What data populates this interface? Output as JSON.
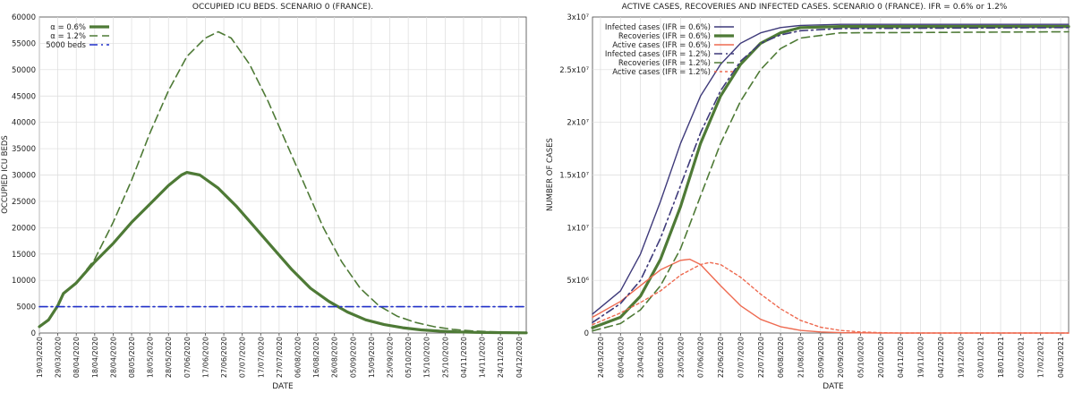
{
  "chart_data": [
    {
      "type": "line",
      "title": "OCCUPIED ICU BEDS. SCENARIO 0 (FRANCE).",
      "xlabel": "DATE",
      "ylabel": "OCCUPIED ICU BEDS",
      "ylim": [
        0,
        60000
      ],
      "yticks": [
        "0",
        "5000",
        "10000",
        "15000",
        "20000",
        "25000",
        "30000",
        "35000",
        "40000",
        "45000",
        "50000",
        "55000",
        "60000"
      ],
      "xlim": [
        "2020-03-19",
        "2020-12-08"
      ],
      "xtick_labels": [
        "19/03/2020",
        "29/03/2020",
        "08/04/2020",
        "18/04/2020",
        "28/04/2020",
        "08/05/2020",
        "18/05/2020",
        "28/05/2020",
        "07/06/2020",
        "17/06/2020",
        "27/06/2020",
        "07/07/2020",
        "17/07/2020",
        "27/07/2020",
        "06/08/2020",
        "16/08/2020",
        "26/08/2020",
        "05/09/2020",
        "15/09/2020",
        "25/09/2020",
        "05/10/2020",
        "15/10/2020",
        "25/10/2020",
        "04/11/2020",
        "14/11/2020",
        "24/11/2020",
        "04/12/2020"
      ],
      "grid": true,
      "legend": "top-left",
      "series": [
        {
          "name": "α = 0.6%",
          "color": "#4e7a36",
          "style": "solid-thick",
          "points": [
            [
              "2020-03-19",
              1200
            ],
            [
              "2020-03-24",
              2500
            ],
            [
              "2020-03-29",
              5200
            ],
            [
              "2020-04-01",
              7500
            ],
            [
              "2020-04-08",
              9500
            ],
            [
              "2020-04-18",
              13500
            ],
            [
              "2020-04-28",
              17000
            ],
            [
              "2020-05-08",
              21000
            ],
            [
              "2020-05-18",
              24500
            ],
            [
              "2020-05-28",
              28000
            ],
            [
              "2020-06-04",
              30000
            ],
            [
              "2020-06-07",
              30500
            ],
            [
              "2020-06-14",
              30000
            ],
            [
              "2020-06-24",
              27500
            ],
            [
              "2020-07-04",
              24000
            ],
            [
              "2020-07-14",
              20000
            ],
            [
              "2020-07-24",
              16000
            ],
            [
              "2020-08-03",
              12000
            ],
            [
              "2020-08-13",
              8500
            ],
            [
              "2020-08-23",
              6000
            ],
            [
              "2020-09-02",
              4000
            ],
            [
              "2020-09-12",
              2500
            ],
            [
              "2020-09-22",
              1600
            ],
            [
              "2020-10-02",
              1000
            ],
            [
              "2020-10-12",
              600
            ],
            [
              "2020-10-22",
              350
            ],
            [
              "2020-11-01",
              200
            ],
            [
              "2020-11-11",
              120
            ],
            [
              "2020-11-21",
              80
            ],
            [
              "2020-12-01",
              50
            ],
            [
              "2020-12-08",
              30
            ]
          ]
        },
        {
          "name": "α = 1.2%",
          "color": "#4e7a36",
          "style": "dashed",
          "points": [
            [
              "2020-03-19",
              1200
            ],
            [
              "2020-03-24",
              2500
            ],
            [
              "2020-03-29",
              5200
            ],
            [
              "2020-04-01",
              7500
            ],
            [
              "2020-04-08",
              9500
            ],
            [
              "2020-04-18",
              14000
            ],
            [
              "2020-04-28",
              21000
            ],
            [
              "2020-05-08",
              29000
            ],
            [
              "2020-05-18",
              38000
            ],
            [
              "2020-05-28",
              46000
            ],
            [
              "2020-06-07",
              52500
            ],
            [
              "2020-06-17",
              56000
            ],
            [
              "2020-06-24",
              57200
            ],
            [
              "2020-07-01",
              56000
            ],
            [
              "2020-07-11",
              51000
            ],
            [
              "2020-07-21",
              44000
            ],
            [
              "2020-07-31",
              36000
            ],
            [
              "2020-08-10",
              28000
            ],
            [
              "2020-08-20",
              20000
            ],
            [
              "2020-08-30",
              13500
            ],
            [
              "2020-09-09",
              8500
            ],
            [
              "2020-09-19",
              5200
            ],
            [
              "2020-09-29",
              3200
            ],
            [
              "2020-10-09",
              2000
            ],
            [
              "2020-10-19",
              1200
            ],
            [
              "2020-10-29",
              700
            ],
            [
              "2020-11-08",
              400
            ],
            [
              "2020-11-18",
              250
            ],
            [
              "2020-11-28",
              150
            ],
            [
              "2020-12-08",
              80
            ]
          ]
        },
        {
          "name": "5000 beds",
          "color": "#1f2fc8",
          "style": "dashdot",
          "points": [
            [
              "2020-03-19",
              5000
            ],
            [
              "2020-12-08",
              5000
            ]
          ]
        }
      ]
    },
    {
      "type": "line",
      "title": "ACTIVE CASES, RECOVERIES AND INFECTED CASES. SCENARIO 0 (FRANCE). IFR = 0.6% or 1.2%",
      "xlabel": "DATE",
      "ylabel": "NUMBER OF CASES",
      "ylim": [
        0,
        30000000
      ],
      "yticks": [
        "0",
        "5x10⁶",
        "1x10⁷",
        "1.5x10⁷",
        "2x10⁷",
        "2.5x10⁷",
        "3x10⁷"
      ],
      "xlim": [
        "2020-03-18",
        "2021-03-10"
      ],
      "xtick_labels": [
        "24/03/2020",
        "08/04/2020",
        "23/04/2020",
        "08/05/2020",
        "23/05/2020",
        "07/06/2020",
        "22/06/2020",
        "07/07/2020",
        "22/07/2020",
        "06/08/2020",
        "21/08/2020",
        "05/09/2020",
        "20/09/2020",
        "05/10/2020",
        "20/10/2020",
        "04/11/2020",
        "19/11/2020",
        "04/12/2020",
        "19/12/2020",
        "03/01/2021",
        "18/01/2021",
        "02/02/2021",
        "17/02/2021",
        "04/03/2021"
      ],
      "grid": true,
      "legend": "top-left",
      "series": [
        {
          "name": "Infected cases (IFR = 0.6%)",
          "color": "#3e3a7a",
          "style": "solid",
          "points": [
            [
              "2020-03-18",
              1800000
            ],
            [
              "2020-04-08",
              4000000
            ],
            [
              "2020-04-23",
              7500000
            ],
            [
              "2020-05-08",
              12500000
            ],
            [
              "2020-05-23",
              18000000
            ],
            [
              "2020-06-07",
              22500000
            ],
            [
              "2020-06-22",
              25500000
            ],
            [
              "2020-07-07",
              27500000
            ],
            [
              "2020-07-22",
              28500000
            ],
            [
              "2020-08-06",
              29000000
            ],
            [
              "2020-08-21",
              29200000
            ],
            [
              "2020-09-20",
              29300000
            ],
            [
              "2021-03-10",
              29300000
            ]
          ]
        },
        {
          "name": "Recoveries (IFR = 0.6%)",
          "color": "#4e7a36",
          "style": "solid-thick",
          "points": [
            [
              "2020-03-18",
              500000
            ],
            [
              "2020-04-08",
              1500000
            ],
            [
              "2020-04-23",
              3500000
            ],
            [
              "2020-05-08",
              7000000
            ],
            [
              "2020-05-23",
              12000000
            ],
            [
              "2020-06-07",
              18000000
            ],
            [
              "2020-06-22",
              22500000
            ],
            [
              "2020-07-07",
              25500000
            ],
            [
              "2020-07-22",
              27500000
            ],
            [
              "2020-08-06",
              28500000
            ],
            [
              "2020-08-21",
              29000000
            ],
            [
              "2020-09-20",
              29100000
            ],
            [
              "2021-03-10",
              29100000
            ]
          ]
        },
        {
          "name": "Active cases (IFR = 0.6%)",
          "color": "#ee6a50",
          "style": "solid",
          "points": [
            [
              "2020-03-18",
              1500000
            ],
            [
              "2020-04-08",
              3000000
            ],
            [
              "2020-04-23",
              4500000
            ],
            [
              "2020-05-08",
              6000000
            ],
            [
              "2020-05-23",
              6900000
            ],
            [
              "2020-05-30",
              7000000
            ],
            [
              "2020-06-07",
              6500000
            ],
            [
              "2020-06-22",
              4500000
            ],
            [
              "2020-07-07",
              2600000
            ],
            [
              "2020-07-22",
              1300000
            ],
            [
              "2020-08-06",
              600000
            ],
            [
              "2020-08-21",
              250000
            ],
            [
              "2020-09-05",
              100000
            ],
            [
              "2020-09-20",
              30000
            ],
            [
              "2020-10-20",
              0
            ],
            [
              "2021-03-10",
              0
            ]
          ]
        },
        {
          "name": "Infected cases (IFR = 1.2%)",
          "color": "#3e3a7a",
          "style": "dashdot",
          "points": [
            [
              "2020-03-18",
              1000000
            ],
            [
              "2020-04-08",
              2800000
            ],
            [
              "2020-04-23",
              5000000
            ],
            [
              "2020-05-08",
              9000000
            ],
            [
              "2020-05-23",
              14000000
            ],
            [
              "2020-06-07",
              19000000
            ],
            [
              "2020-06-22",
              23000000
            ],
            [
              "2020-07-07",
              25800000
            ],
            [
              "2020-07-22",
              27500000
            ],
            [
              "2020-08-06",
              28300000
            ],
            [
              "2020-08-21",
              28700000
            ],
            [
              "2020-09-20",
              28900000
            ],
            [
              "2021-03-10",
              29000000
            ]
          ]
        },
        {
          "name": "Recoveries (IFR = 1.2%)",
          "color": "#4e7a36",
          "style": "dashed",
          "points": [
            [
              "2020-03-18",
              200000
            ],
            [
              "2020-04-08",
              900000
            ],
            [
              "2020-04-23",
              2200000
            ],
            [
              "2020-05-08",
              4500000
            ],
            [
              "2020-05-23",
              8000000
            ],
            [
              "2020-06-07",
              13000000
            ],
            [
              "2020-06-22",
              18000000
            ],
            [
              "2020-07-07",
              22000000
            ],
            [
              "2020-07-22",
              25000000
            ],
            [
              "2020-08-06",
              27000000
            ],
            [
              "2020-08-21",
              28000000
            ],
            [
              "2020-09-20",
              28500000
            ],
            [
              "2021-03-10",
              28600000
            ]
          ]
        },
        {
          "name": "Active cases (IFR = 1.2%)",
          "color": "#ee6a50",
          "style": "dotted",
          "points": [
            [
              "2020-03-18",
              800000
            ],
            [
              "2020-04-08",
              1900000
            ],
            [
              "2020-04-23",
              2900000
            ],
            [
              "2020-05-08",
              4000000
            ],
            [
              "2020-05-23",
              5500000
            ],
            [
              "2020-06-07",
              6500000
            ],
            [
              "2020-06-14",
              6700000
            ],
            [
              "2020-06-22",
              6500000
            ],
            [
              "2020-07-07",
              5300000
            ],
            [
              "2020-07-22",
              3700000
            ],
            [
              "2020-08-06",
              2300000
            ],
            [
              "2020-08-21",
              1200000
            ],
            [
              "2020-09-05",
              550000
            ],
            [
              "2020-09-20",
              250000
            ],
            [
              "2020-10-05",
              100000
            ],
            [
              "2020-10-20",
              30000
            ],
            [
              "2020-11-04",
              0
            ],
            [
              "2021-03-10",
              0
            ]
          ]
        }
      ]
    }
  ]
}
